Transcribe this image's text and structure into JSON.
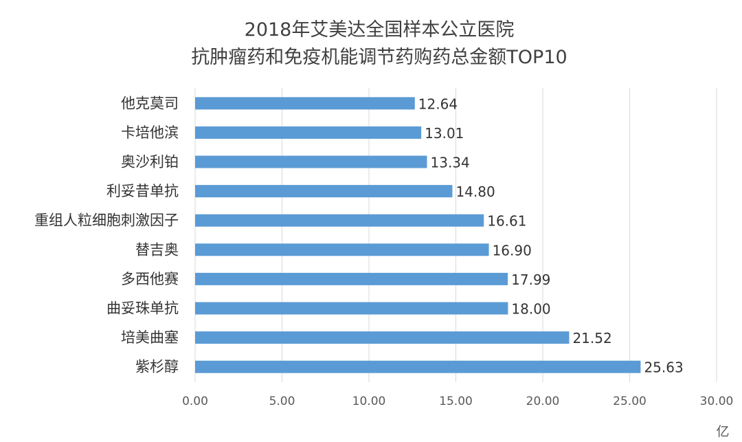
{
  "chart_data": {
    "type": "bar",
    "orientation": "horizontal",
    "title": [
      "2018年艾美达全国样本公立医院",
      "抗肿瘤药和免疫机能调节药购药总金额TOP10"
    ],
    "categories": [
      "他克莫司",
      "卡培他滨",
      "奥沙利铂",
      "利妥昔单抗",
      "重组人粒细胞刺激因子",
      "替吉奥",
      "多西他赛",
      "曲妥珠单抗",
      "培美曲塞",
      "紫杉醇"
    ],
    "values": [
      12.64,
      13.01,
      13.34,
      14.8,
      16.61,
      16.9,
      17.99,
      18.0,
      21.52,
      25.63
    ],
    "value_labels": [
      "12.64",
      "13.01",
      "13.34",
      "14.80",
      "16.61",
      "16.90",
      "17.99",
      "18.00",
      "21.52",
      "25.63"
    ],
    "xlim": [
      0,
      30
    ],
    "xticks": [
      "0.00",
      "5.00",
      "10.00",
      "15.00",
      "20.00",
      "25.00",
      "30.00"
    ],
    "xunit": "亿",
    "grid": true,
    "color": "#5b9bd5"
  }
}
